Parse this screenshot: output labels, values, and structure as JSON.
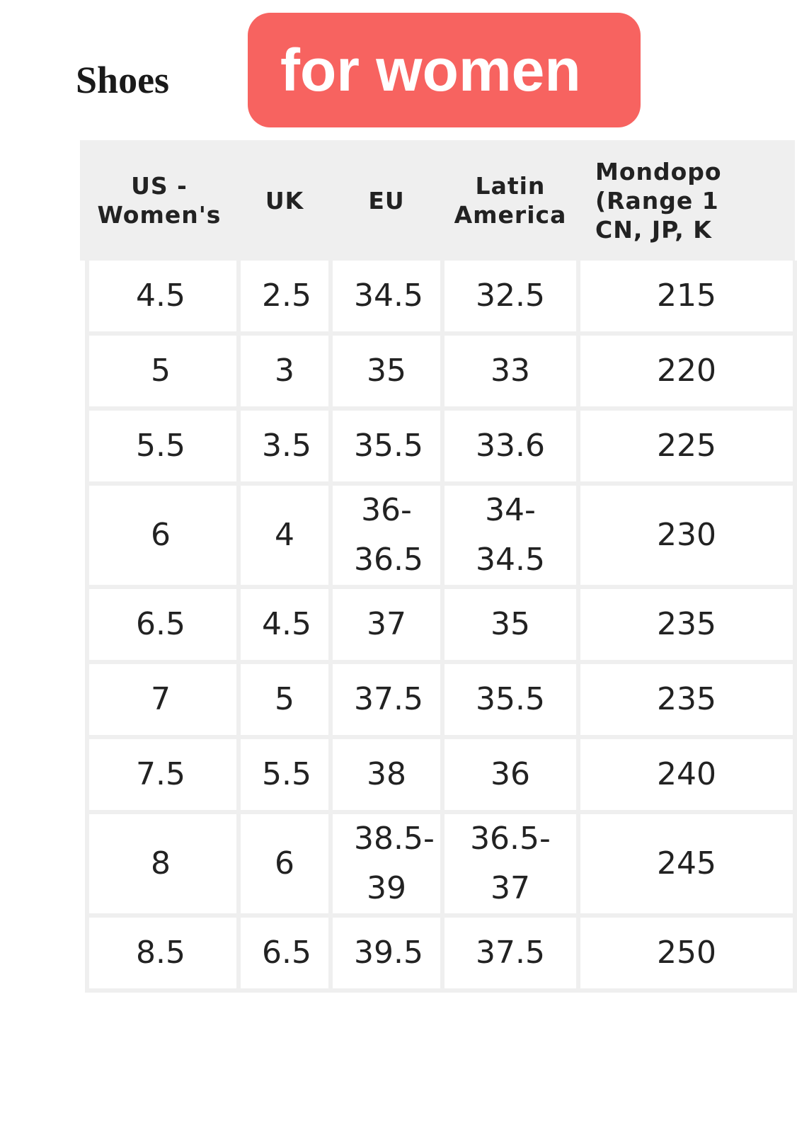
{
  "header": {
    "title": "Shoes",
    "badge": "for women"
  },
  "table": {
    "columns": [
      [
        "US -",
        "Women's"
      ],
      [
        "UK"
      ],
      [
        "EU"
      ],
      [
        "Latin",
        "America"
      ],
      [
        "Mondopo",
        "(Range 1",
        "CN, JP, K"
      ]
    ],
    "rows": [
      [
        "4.5",
        "2.5",
        "34.5",
        "32.5",
        "215"
      ],
      [
        "5",
        "3",
        "35",
        "33",
        "220"
      ],
      [
        "5.5",
        "3.5",
        "35.5",
        "33.6",
        "225"
      ],
      [
        "6",
        "4",
        "36-36.5",
        "34-34.5",
        "230"
      ],
      [
        "6.5",
        "4.5",
        "37",
        "35",
        "235"
      ],
      [
        "7",
        "5",
        "37.5",
        "35.5",
        "235"
      ],
      [
        "7.5",
        "5.5",
        "38",
        "36",
        "240"
      ],
      [
        "8",
        "6",
        "38.5-39",
        "36.5-37",
        "245"
      ],
      [
        "8.5",
        "6.5",
        "39.5",
        "37.5",
        "250"
      ]
    ]
  }
}
